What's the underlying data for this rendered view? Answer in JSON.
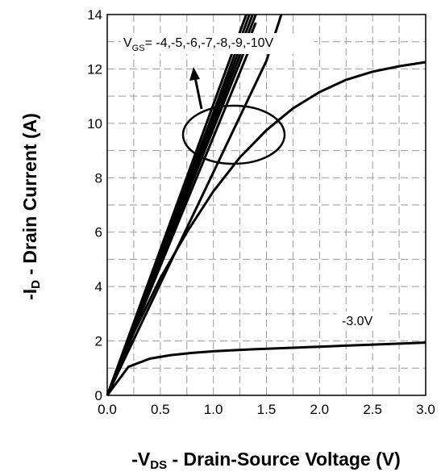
{
  "chart_data": {
    "type": "line",
    "title": "",
    "xlabel": "-VDS - Drain-Source Voltage (V)",
    "xlabel_parts": {
      "prefix": "-V",
      "sub": "DS",
      "suffix": " - Drain-Source Voltage (V)"
    },
    "ylabel": "-ID - Drain Current (A)",
    "ylabel_parts": {
      "prefix": "-I",
      "sub": "D",
      "suffix": " - Drain Current (A)"
    },
    "xlim": [
      0,
      3.0
    ],
    "ylim": [
      0,
      14
    ],
    "xticks": [
      "0.0",
      "0.5",
      "1.0",
      "1.5",
      "2.0",
      "2.5",
      "3.0"
    ],
    "yticks": [
      "0",
      "2",
      "4",
      "6",
      "8",
      "10",
      "12",
      "14"
    ],
    "grid": true,
    "annotations": {
      "vgs_group": {
        "prefix": "V",
        "sub": "GS",
        "suffix": "= -4,-5,-6,-7,-8,-9,-10V"
      },
      "vgs_low": "-3.0V"
    },
    "series": [
      {
        "x": [
          0,
          0.2,
          0.4,
          0.6,
          0.8,
          1.0,
          1.2,
          1.4,
          1.6,
          1.8,
          2.0,
          2.2,
          2.4,
          2.6,
          2.8,
          3.0
        ],
        "values": [
          0,
          1.05,
          1.35,
          1.48,
          1.56,
          1.62,
          1.66,
          1.7,
          1.73,
          1.76,
          1.79,
          1.82,
          1.85,
          1.88,
          1.91,
          1.94
        ]
      },
      {
        "x": [
          0,
          0.25,
          0.5,
          0.75,
          1.0,
          1.25,
          1.5,
          1.75,
          2.0,
          2.25,
          2.5,
          2.75,
          3.0
        ],
        "values": [
          0,
          2.3,
          4.3,
          6.0,
          7.5,
          8.75,
          9.75,
          10.55,
          11.15,
          11.6,
          11.9,
          12.1,
          12.25
        ]
      },
      {
        "x": [
          0,
          0.5,
          1.0,
          1.5,
          1.64
        ],
        "values": [
          0,
          4.1,
          8.2,
          12.3,
          14
        ]
      },
      {
        "x": [
          0,
          0.5,
          1.0,
          1.4
        ],
        "values": [
          0,
          4.75,
          9.5,
          13.3
        ]
      },
      {
        "x": [
          0,
          0.5,
          1.0,
          1.4
        ],
        "values": [
          0,
          4.9,
          9.8,
          13.7
        ]
      },
      {
        "x": [
          0,
          0.5,
          1.0,
          1.4
        ],
        "values": [
          0,
          5.0,
          10.0,
          14.0
        ]
      },
      {
        "x": [
          0,
          0.5,
          1.0,
          1.37
        ],
        "values": [
          0,
          5.1,
          10.2,
          14.0
        ]
      },
      {
        "x": [
          0,
          0.5,
          1.0,
          1.34
        ],
        "values": [
          0,
          5.2,
          10.4,
          14.0
        ]
      },
      {
        "x": [
          0,
          0.5,
          1.0,
          1.31
        ],
        "values": [
          0,
          5.35,
          10.7,
          14.0
        ]
      }
    ]
  }
}
